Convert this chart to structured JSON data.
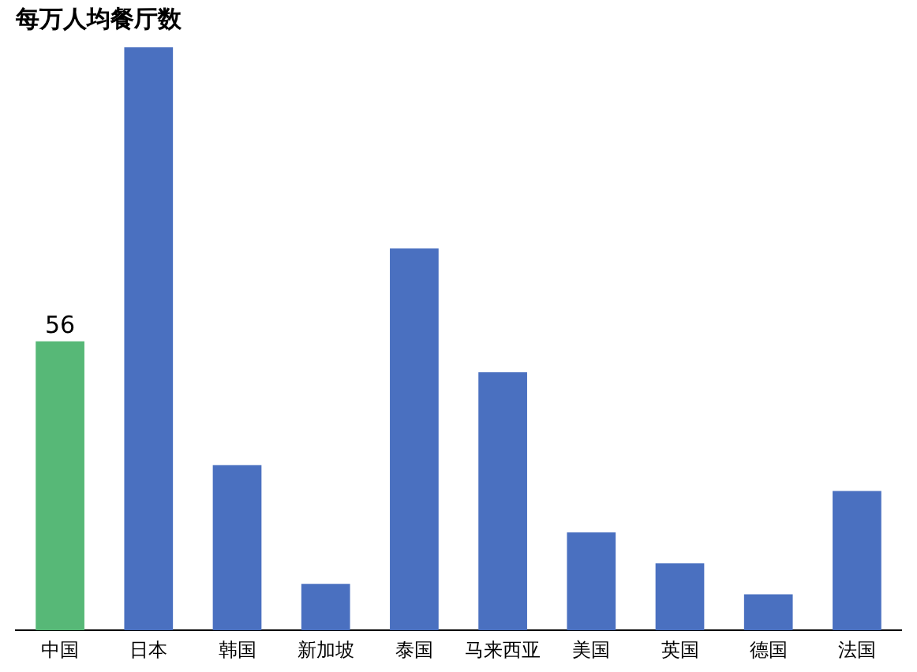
{
  "chart_data": {
    "type": "bar",
    "title": "每万人均餐厅数",
    "tick_labels": "x",
    "categories": [
      "中国",
      "日本",
      "韩国",
      "新加坡",
      "泰国",
      "马来西亚",
      "美国",
      "英国",
      "德国",
      "法国"
    ],
    "values": [
      56,
      113,
      32,
      9,
      74,
      50,
      19,
      13,
      7,
      27
    ],
    "colors": [
      "#57b877",
      "#4a70c0",
      "#4a70c0",
      "#4a70c0",
      "#4a70c0",
      "#4a70c0",
      "#4a70c0",
      "#4a70c0",
      "#4a70c0",
      "#4a70c0"
    ],
    "value_labels": [
      "56",
      null,
      null,
      null,
      null,
      null,
      null,
      null,
      null,
      null
    ]
  }
}
